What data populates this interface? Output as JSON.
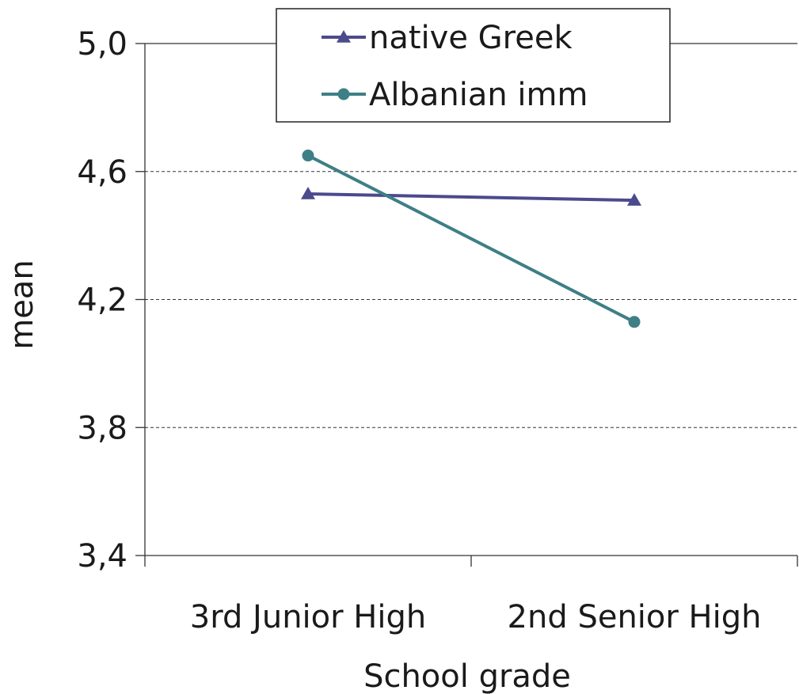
{
  "chart_data": {
    "type": "line",
    "title": "",
    "xlabel": "School grade",
    "ylabel": "mean",
    "categories": [
      "3rd Junior High",
      "2nd Senior High"
    ],
    "y_tick_labels": [
      "3,4",
      "3,8",
      "4,2",
      "4,6",
      "5,0"
    ],
    "y_ticks": [
      3.4,
      3.8,
      4.2,
      4.6,
      5.0
    ],
    "ylim": [
      3.4,
      5.0
    ],
    "grid": "horizontal dashed",
    "legend_position": "top-center",
    "series": [
      {
        "name": "native Greek",
        "values": [
          4.53,
          4.51
        ],
        "color": "#4B4A8C",
        "marker": "triangle"
      },
      {
        "name": "Albanian imm",
        "values": [
          4.65,
          4.13
        ],
        "color": "#3E7F86",
        "marker": "circle"
      }
    ]
  }
}
